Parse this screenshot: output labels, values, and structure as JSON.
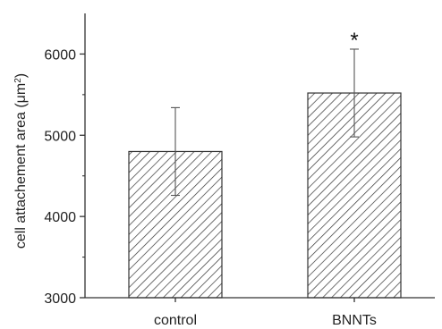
{
  "chart_data": {
    "type": "bar",
    "title": "",
    "xlabel": "",
    "ylabel": {
      "prefix": "cell attachement area (",
      "unit_base": "μm",
      "unit_exp": "2",
      "suffix": ")"
    },
    "ylim": [
      3000,
      6500
    ],
    "yticks": [
      3000,
      4000,
      5000,
      6000
    ],
    "ytick_labels": [
      "3000",
      "4000",
      "5000",
      "6000"
    ],
    "categories": [
      "control",
      "BNNTs"
    ],
    "values": [
      4800,
      5520
    ],
    "errors": [
      540,
      540
    ],
    "bar_fill": "hatched",
    "bar_color": "#333333",
    "annotations": [
      {
        "category": "BNNTs",
        "text": "*"
      }
    ],
    "grid": false,
    "legend": "none"
  }
}
